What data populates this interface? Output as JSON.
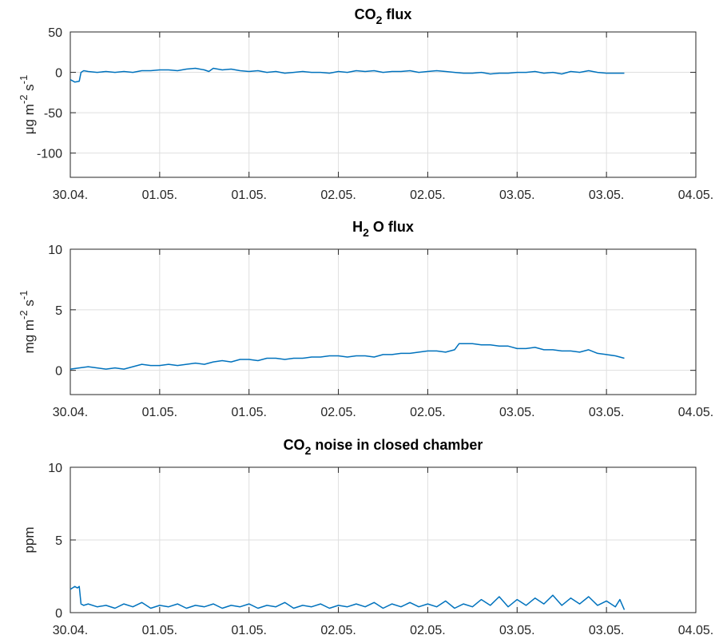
{
  "chart_data": [
    {
      "type": "line",
      "title_main": "CO",
      "title_sub": "2",
      "title_rest": "flux",
      "ylabel_parts": [
        "μg m",
        "-2",
        " s",
        "-1"
      ],
      "ylim": [
        -130,
        50
      ],
      "yticks": [
        50,
        0,
        -50,
        -100
      ],
      "ytick_labels": [
        "50",
        "0",
        "-50",
        "-100"
      ],
      "xlim": [
        0,
        7
      ],
      "xtick_labels": [
        "30.04.",
        "01.05.",
        "01.05.",
        "02.05.",
        "02.05.",
        "03.05.",
        "03.05.",
        "04.05."
      ],
      "grid": true,
      "color": "#0072BD",
      "series": [
        {
          "x": [
            0,
            0.05,
            0.1,
            0.12,
            0.15,
            0.2,
            0.3,
            0.4,
            0.5,
            0.6,
            0.7,
            0.8,
            0.9,
            1.0,
            1.1,
            1.2,
            1.3,
            1.4,
            1.5,
            1.55,
            1.6,
            1.7,
            1.8,
            1.9,
            2.0,
            2.1,
            2.2,
            2.3,
            2.4,
            2.5,
            2.6,
            2.7,
            2.8,
            2.9,
            3.0,
            3.1,
            3.2,
            3.3,
            3.4,
            3.5,
            3.6,
            3.7,
            3.8,
            3.9,
            4.0,
            4.1,
            4.2,
            4.3,
            4.4,
            4.5,
            4.6,
            4.7,
            4.8,
            4.9,
            5.0,
            5.1,
            5.2,
            5.3,
            5.4,
            5.5,
            5.6,
            5.7,
            5.8,
            5.9,
            6.0,
            6.1,
            6.2
          ],
          "y": [
            -9,
            -12,
            -11,
            0,
            2,
            1,
            0,
            1,
            0,
            1,
            0,
            2,
            2,
            3,
            3,
            2,
            4,
            5,
            3,
            1,
            5,
            3,
            4,
            2,
            1,
            2,
            0,
            1,
            -1,
            0,
            1,
            0,
            0,
            -1,
            1,
            0,
            2,
            1,
            2,
            0,
            1,
            1,
            2,
            0,
            1,
            2,
            1,
            0,
            -1,
            -1,
            0,
            -2,
            -1,
            -1,
            0,
            0,
            1,
            -1,
            0,
            -2,
            1,
            0,
            2,
            0,
            -1,
            -1,
            -1
          ]
        }
      ]
    },
    {
      "type": "line",
      "title_main": "H",
      "title_sub": "2",
      "title_rest": "O flux",
      "ylabel_parts": [
        "mg m",
        "-2",
        " s",
        "-1"
      ],
      "ylim": [
        -2,
        10
      ],
      "yticks": [
        10,
        5,
        0
      ],
      "ytick_labels": [
        "10",
        "5",
        "0"
      ],
      "xlim": [
        0,
        7
      ],
      "xtick_labels": [
        "30.04.",
        "01.05.",
        "01.05.",
        "02.05.",
        "02.05.",
        "03.05.",
        "03.05.",
        "04.05."
      ],
      "grid": true,
      "color": "#0072BD",
      "series": [
        {
          "x": [
            0,
            0.1,
            0.2,
            0.3,
            0.4,
            0.5,
            0.6,
            0.7,
            0.8,
            0.9,
            1.0,
            1.1,
            1.2,
            1.3,
            1.4,
            1.5,
            1.6,
            1.7,
            1.8,
            1.9,
            2.0,
            2.1,
            2.2,
            2.3,
            2.4,
            2.5,
            2.6,
            2.7,
            2.8,
            2.9,
            3.0,
            3.1,
            3.2,
            3.3,
            3.4,
            3.5,
            3.6,
            3.7,
            3.8,
            3.9,
            4.0,
            4.1,
            4.2,
            4.3,
            4.35,
            4.4,
            4.5,
            4.6,
            4.7,
            4.8,
            4.9,
            5.0,
            5.1,
            5.2,
            5.3,
            5.4,
            5.5,
            5.6,
            5.7,
            5.8,
            5.9,
            6.0,
            6.1,
            6.2
          ],
          "y": [
            0.1,
            0.2,
            0.3,
            0.2,
            0.1,
            0.2,
            0.1,
            0.3,
            0.5,
            0.4,
            0.4,
            0.5,
            0.4,
            0.5,
            0.6,
            0.5,
            0.7,
            0.8,
            0.7,
            0.9,
            0.9,
            0.8,
            1.0,
            1.0,
            0.9,
            1.0,
            1.0,
            1.1,
            1.1,
            1.2,
            1.2,
            1.1,
            1.2,
            1.2,
            1.1,
            1.3,
            1.3,
            1.4,
            1.4,
            1.5,
            1.6,
            1.6,
            1.5,
            1.7,
            2.2,
            2.2,
            2.2,
            2.1,
            2.1,
            2.0,
            2.0,
            1.8,
            1.8,
            1.9,
            1.7,
            1.7,
            1.6,
            1.6,
            1.5,
            1.7,
            1.4,
            1.3,
            1.2,
            1.0
          ]
        }
      ]
    },
    {
      "type": "line",
      "title_main": "CO",
      "title_sub": "2",
      "title_rest": "noise in closed chamber",
      "ylabel_parts": [
        "ppm"
      ],
      "ylim": [
        0,
        10
      ],
      "yticks": [
        10,
        5,
        0
      ],
      "ytick_labels": [
        "10",
        "5",
        "0"
      ],
      "xlim": [
        0,
        7
      ],
      "xtick_labels": [
        "30.04.",
        "01.05.",
        "01.05.",
        "02.05.",
        "02.05.",
        "03.05.",
        "03.05.",
        "04.05."
      ],
      "grid": true,
      "color": "#0072BD",
      "series": [
        {
          "x": [
            0,
            0.05,
            0.08,
            0.1,
            0.12,
            0.15,
            0.2,
            0.3,
            0.4,
            0.5,
            0.6,
            0.7,
            0.8,
            0.9,
            1.0,
            1.1,
            1.2,
            1.3,
            1.4,
            1.5,
            1.6,
            1.7,
            1.8,
            1.9,
            2.0,
            2.1,
            2.2,
            2.3,
            2.4,
            2.5,
            2.6,
            2.7,
            2.8,
            2.9,
            3.0,
            3.1,
            3.2,
            3.3,
            3.4,
            3.5,
            3.6,
            3.7,
            3.8,
            3.9,
            4.0,
            4.1,
            4.2,
            4.3,
            4.4,
            4.5,
            4.6,
            4.7,
            4.8,
            4.9,
            5.0,
            5.1,
            5.2,
            5.3,
            5.4,
            5.5,
            5.6,
            5.7,
            5.8,
            5.9,
            6.0,
            6.1,
            6.15,
            6.2
          ],
          "y": [
            1.6,
            1.8,
            1.7,
            1.8,
            0.6,
            0.5,
            0.6,
            0.4,
            0.5,
            0.3,
            0.6,
            0.4,
            0.7,
            0.3,
            0.5,
            0.4,
            0.6,
            0.3,
            0.5,
            0.4,
            0.6,
            0.3,
            0.5,
            0.4,
            0.6,
            0.3,
            0.5,
            0.4,
            0.7,
            0.3,
            0.5,
            0.4,
            0.6,
            0.3,
            0.5,
            0.4,
            0.6,
            0.4,
            0.7,
            0.3,
            0.6,
            0.4,
            0.7,
            0.4,
            0.6,
            0.4,
            0.8,
            0.3,
            0.6,
            0.4,
            0.9,
            0.5,
            1.1,
            0.4,
            0.9,
            0.5,
            1.0,
            0.6,
            1.2,
            0.5,
            1.0,
            0.6,
            1.1,
            0.5,
            0.8,
            0.4,
            0.9,
            0.2
          ]
        }
      ]
    }
  ]
}
